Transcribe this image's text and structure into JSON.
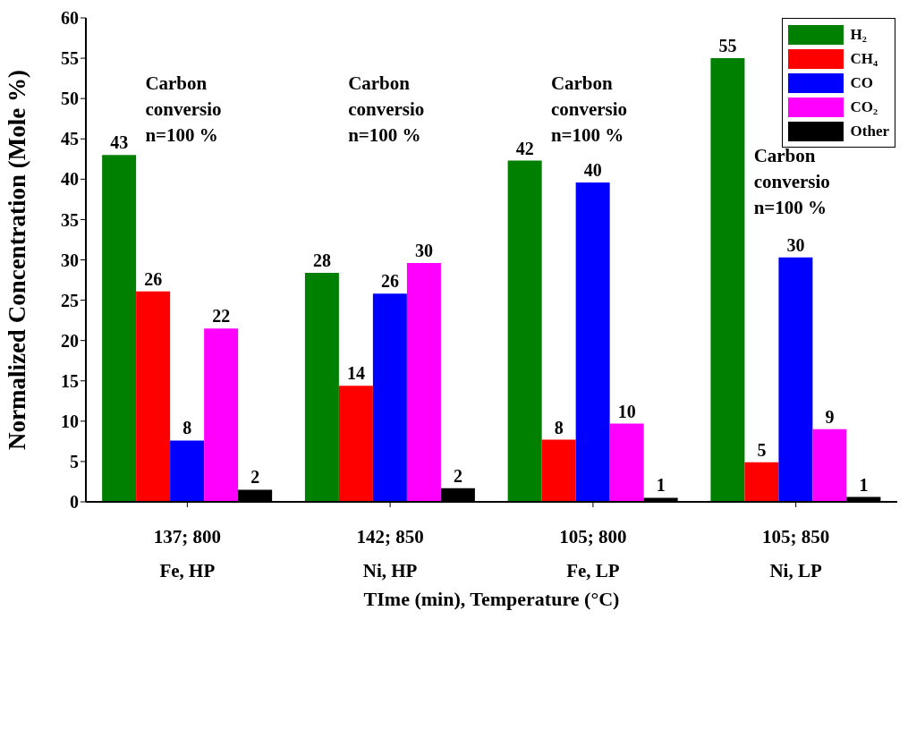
{
  "chart_data": {
    "type": "bar",
    "xlabel": "TIme (min), Temperature (°C)",
    "ylabel": "Normalized Concentration (Mole %)",
    "categories": [
      "137; 800\nFe, HP",
      "142; 850\nNi, HP",
      "105; 800\nFe, LP",
      "105; 850\nNi, LP"
    ],
    "series": [
      {
        "name": "H₂",
        "color": "#008000",
        "values": [
          43,
          28.4,
          42.3,
          55
        ],
        "value_labels": [
          "43",
          "28",
          "42",
          "55"
        ]
      },
      {
        "name": "CH₄",
        "color": "#ff0000",
        "values": [
          26.1,
          14.4,
          7.7,
          4.9
        ],
        "value_labels": [
          "26",
          "14",
          "8",
          "5"
        ]
      },
      {
        "name": "CO",
        "color": "#0000ff",
        "values": [
          7.6,
          25.8,
          39.6,
          30.3
        ],
        "value_labels": [
          "8",
          "26",
          "40",
          "30"
        ]
      },
      {
        "name": "CO₂",
        "color": "#ff00ff",
        "values": [
          21.5,
          29.6,
          9.7,
          9.0
        ],
        "value_labels": [
          "22",
          "30",
          "10",
          "9"
        ]
      },
      {
        "name": "Other",
        "color": "#000000",
        "values": [
          1.5,
          1.7,
          0.5,
          0.6
        ],
        "value_labels": [
          "2",
          "2",
          "1",
          "1"
        ]
      }
    ],
    "ylim": [
      0,
      60
    ],
    "yticks": [
      0,
      5,
      10,
      15,
      20,
      25,
      30,
      35,
      40,
      45,
      50,
      55,
      60
    ],
    "legend": "top right",
    "annotations": [
      "Carbon conversion=100 %",
      "Carbon conversion=100 %",
      "Carbon conversion=100 %",
      "Carbon conversion=100 %"
    ]
  }
}
